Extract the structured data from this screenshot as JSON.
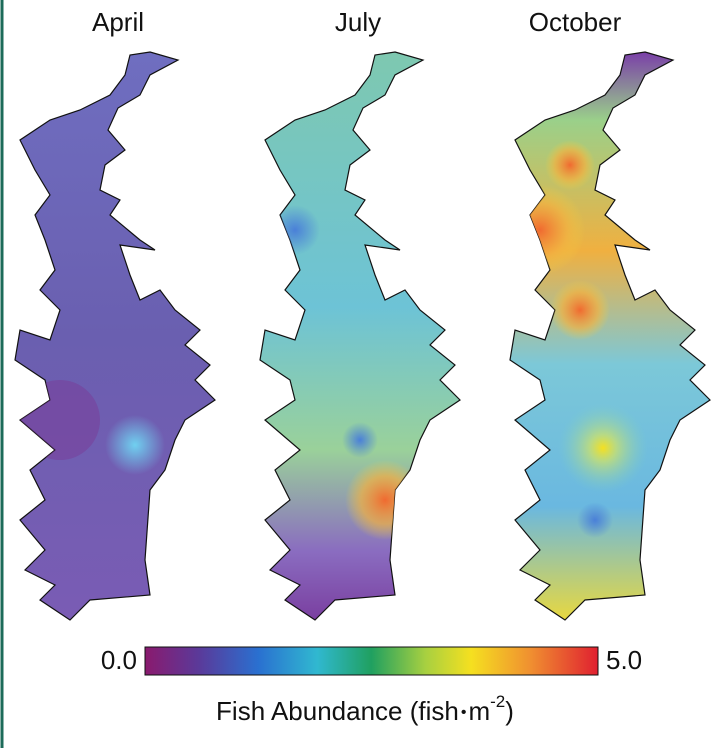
{
  "panels": [
    {
      "title": "April"
    },
    {
      "title": "July"
    },
    {
      "title": "October"
    }
  ],
  "colorbar": {
    "min": {
      "value": 0,
      "label": "0.0"
    },
    "max": {
      "value": 5,
      "label": "5.0"
    },
    "label": {
      "prefix": "Fish Abundance (fish",
      "dot": "•",
      "unit": "m",
      "exponent": "-2",
      "suffix": ")"
    }
  }
}
